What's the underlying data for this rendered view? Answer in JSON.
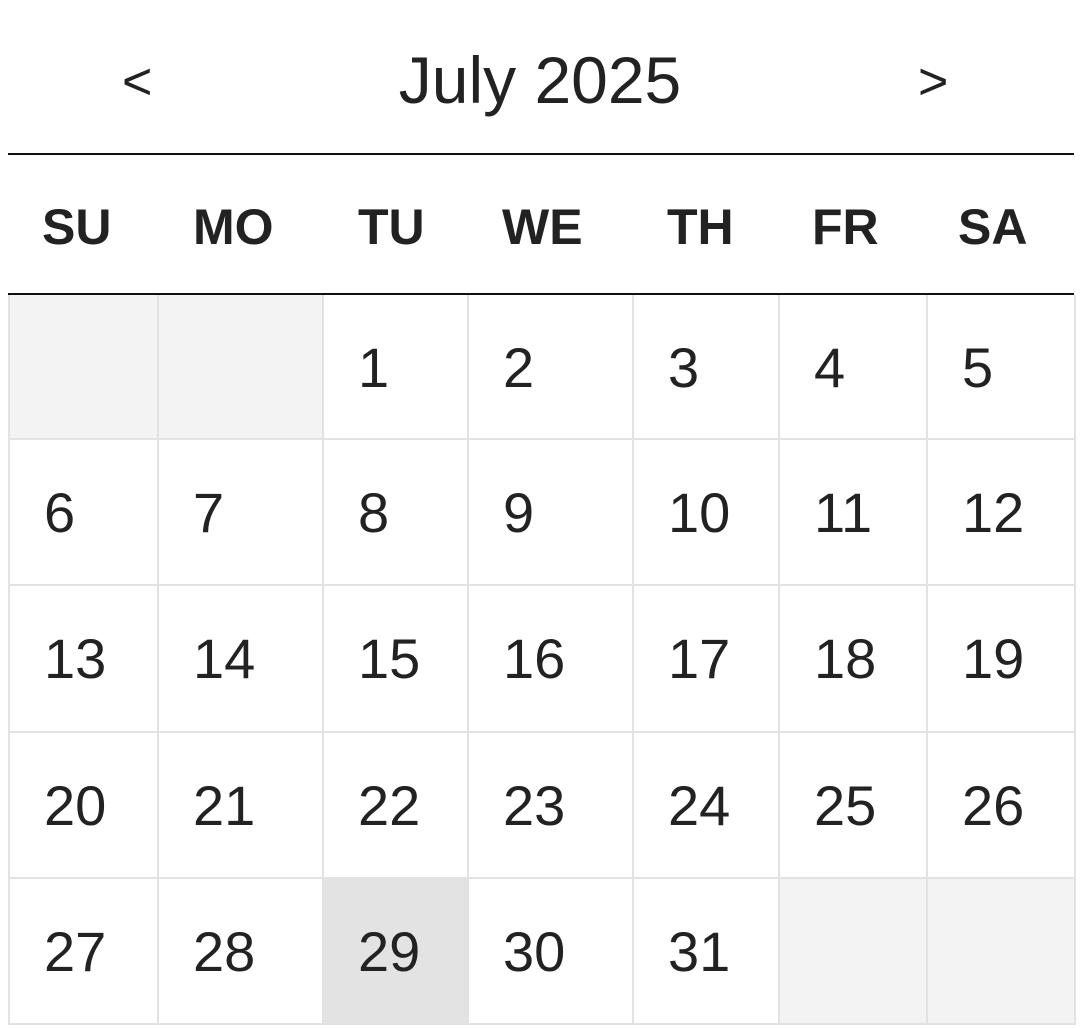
{
  "header": {
    "prev_label": "<",
    "title": "July 2025",
    "next_label": ">"
  },
  "weekdays": [
    "SU",
    "MO",
    "TU",
    "WE",
    "TH",
    "FR",
    "SA"
  ],
  "weeks": [
    [
      "",
      "",
      "1",
      "2",
      "3",
      "4",
      "5"
    ],
    [
      "6",
      "7",
      "8",
      "9",
      "10",
      "11",
      "12"
    ],
    [
      "13",
      "14",
      "15",
      "16",
      "17",
      "18",
      "19"
    ],
    [
      "20",
      "21",
      "22",
      "23",
      "24",
      "25",
      "26"
    ],
    [
      "27",
      "28",
      "29",
      "30",
      "31",
      "",
      ""
    ]
  ],
  "selected_day": "29",
  "colors": {
    "empty_cell": "#f3f3f3",
    "selected_cell": "#e3e3e3",
    "grid_line": "#e2e2e2",
    "text": "#222222"
  }
}
